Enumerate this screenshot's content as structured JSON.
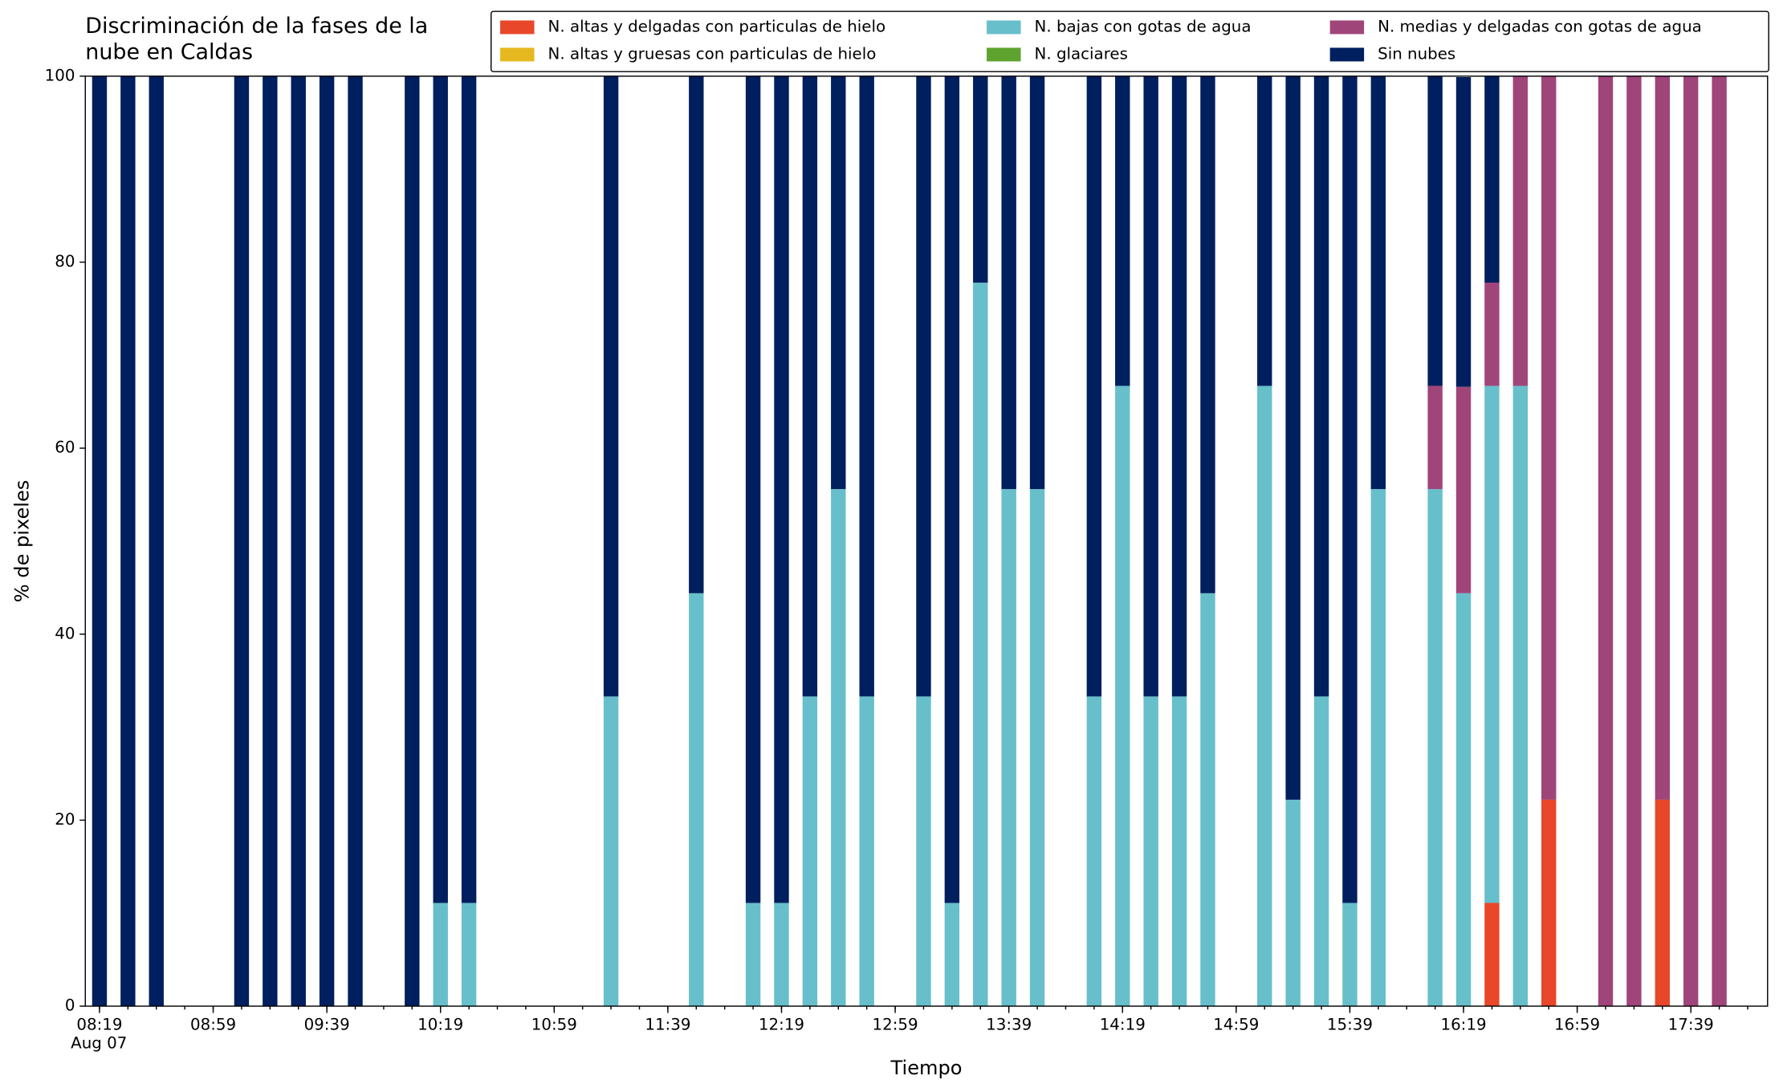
{
  "chart_data": {
    "type": "stacked_bar",
    "title": "Discriminación de la fases de la nube en Caldas",
    "xlabel": "Tiempo",
    "ylabel": "% de pixeles",
    "x_date_label": "Aug 07",
    "x": [
      "08:19",
      "08:29",
      "08:39",
      "09:09",
      "09:19",
      "09:29",
      "09:39",
      "09:49",
      "10:09",
      "10:19",
      "10:29",
      "11:19",
      "11:49",
      "12:09",
      "12:19",
      "12:29",
      "12:39",
      "12:49",
      "13:09",
      "13:19",
      "13:29",
      "13:39",
      "13:49",
      "14:09",
      "14:19",
      "14:29",
      "14:39",
      "14:49",
      "15:09",
      "15:19",
      "15:29",
      "15:39",
      "15:49",
      "16:09",
      "16:19",
      "16:29",
      "16:39",
      "16:49",
      "17:09",
      "17:19",
      "17:29",
      "17:39",
      "17:49"
    ],
    "series": [
      {
        "name": "N. altas y delgadas con particulas de hielo",
        "color": "#e8472a",
        "values": [
          0,
          0,
          0,
          0,
          0,
          0,
          0,
          0,
          0,
          0,
          0,
          0,
          0,
          0,
          0,
          0,
          0,
          0,
          0,
          0,
          0,
          0,
          0,
          0,
          0,
          0,
          0,
          0,
          0,
          0,
          0,
          0,
          0,
          0,
          0,
          11.1,
          0,
          22.2,
          0,
          0,
          22.2,
          0,
          0
        ]
      },
      {
        "name": "N. altas y gruesas con particulas de hielo",
        "color": "#e6b820",
        "values": [
          0,
          0,
          0,
          0,
          0,
          0,
          0,
          0,
          0,
          0,
          0,
          0,
          0,
          0,
          0,
          0,
          0,
          0,
          0,
          0,
          0,
          0,
          0,
          0,
          0,
          0,
          0,
          0,
          0,
          0,
          0,
          0,
          0,
          0,
          0,
          0,
          0,
          0,
          0,
          0,
          0,
          0,
          0
        ]
      },
      {
        "name": "N. bajas con gotas de agua",
        "color": "#67bfcb",
        "values": [
          0,
          0,
          0,
          0,
          0,
          0,
          0,
          0,
          0,
          11.1,
          11.1,
          33.3,
          44.4,
          11.1,
          11.1,
          33.3,
          55.6,
          33.3,
          33.3,
          11.1,
          77.8,
          55.6,
          55.6,
          33.3,
          66.7,
          33.3,
          33.3,
          44.4,
          66.7,
          22.2,
          33.3,
          11.1,
          55.6,
          55.6,
          44.4,
          55.6,
          66.7,
          0,
          0,
          0,
          0,
          0,
          0
        ]
      },
      {
        "name": "N. glaciares",
        "color": "#5ea32e",
        "values": [
          0,
          0,
          0,
          0,
          0,
          0,
          0,
          0,
          0,
          0,
          0,
          0,
          0,
          0,
          0,
          0,
          0,
          0,
          0,
          0,
          0,
          0,
          0,
          0,
          0,
          0,
          0,
          0,
          0,
          0,
          0,
          0,
          0,
          0,
          0,
          0,
          0,
          0,
          0,
          0,
          0,
          0,
          0
        ]
      },
      {
        "name": "N. medias y delgadas con gotas de agua",
        "color": "#a0457a",
        "values": [
          0,
          0,
          0,
          0,
          0,
          0,
          0,
          0,
          0,
          0,
          0,
          0,
          0,
          0,
          0,
          0,
          0,
          0,
          0,
          0,
          0,
          0,
          0,
          0,
          0,
          0,
          0,
          0,
          0,
          0,
          0,
          0,
          0,
          11.1,
          22.2,
          11.1,
          33.3,
          77.8,
          100,
          100,
          77.8,
          100,
          100
        ]
      },
      {
        "name": "Sin nubes",
        "color": "#001f5e",
        "values": [
          100,
          100,
          100,
          100,
          100,
          100,
          100,
          100,
          100,
          88.9,
          88.9,
          66.7,
          55.6,
          88.9,
          88.9,
          66.7,
          44.4,
          66.7,
          66.7,
          88.9,
          22.2,
          44.4,
          44.4,
          66.7,
          33.3,
          66.7,
          66.7,
          55.6,
          33.3,
          77.8,
          66.7,
          88.9,
          44.4,
          33.3,
          33.3,
          22.2,
          0,
          0,
          0,
          0,
          0,
          0,
          0
        ]
      }
    ],
    "xlim": [
      "08:14",
      "18:06"
    ],
    "xticks": [
      "08:19",
      "08:59",
      "09:39",
      "10:19",
      "10:59",
      "11:39",
      "12:19",
      "12:59",
      "13:39",
      "14:19",
      "14:59",
      "15:39",
      "16:19",
      "16:59",
      "17:39"
    ],
    "xticks_minor": [
      "08:19",
      "08:29",
      "08:39",
      "08:49",
      "08:59",
      "09:09",
      "09:19",
      "09:29",
      "09:39",
      "09:49",
      "09:59",
      "10:09",
      "10:19",
      "10:29",
      "10:39",
      "10:49",
      "10:59",
      "11:09",
      "11:19",
      "11:29",
      "11:39",
      "11:49",
      "11:59",
      "12:09",
      "12:19",
      "12:29",
      "12:39",
      "12:49",
      "12:59",
      "13:09",
      "13:19",
      "13:29",
      "13:39",
      "13:49",
      "13:59",
      "14:09",
      "14:19",
      "14:29",
      "14:39",
      "14:49",
      "14:59",
      "15:09",
      "15:19",
      "15:29",
      "15:39",
      "15:49",
      "15:59",
      "16:09",
      "16:19",
      "16:29",
      "16:39",
      "16:49",
      "16:59",
      "17:09",
      "17:19",
      "17:29",
      "17:39",
      "17:49",
      "17:59"
    ],
    "ylim": [
      0,
      100
    ],
    "yticks": [
      0,
      20,
      40,
      60,
      80,
      100
    ],
    "grid": false,
    "legend": "top right"
  }
}
